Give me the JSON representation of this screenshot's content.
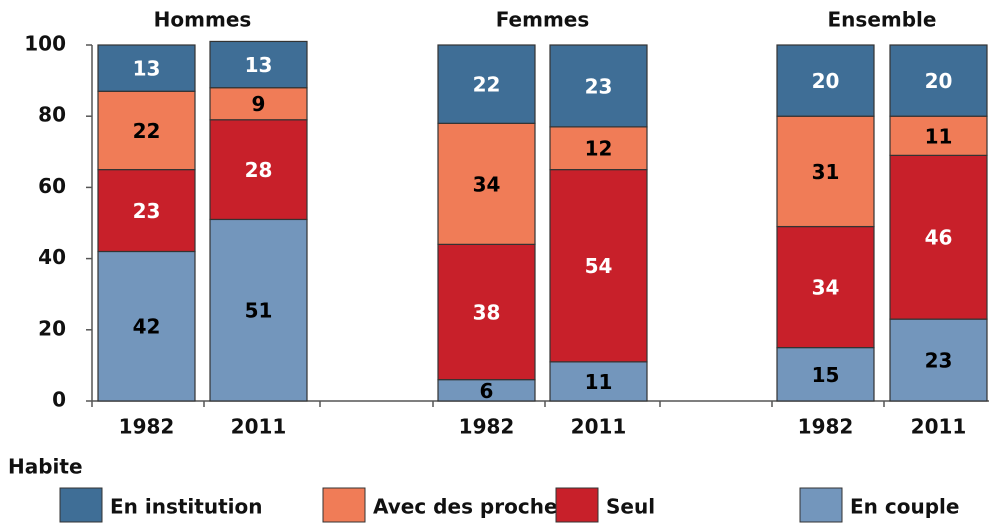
{
  "chart_data": {
    "type": "stacked-bar",
    "groups": [
      "Hommes",
      "Femmes",
      "Ensemble"
    ],
    "categories": [
      "1982",
      "2011",
      "1982",
      "2011",
      "1982",
      "2011"
    ],
    "series": [
      {
        "name": "En couple",
        "color": "#7396bc",
        "label_color": "#000000",
        "values": [
          42,
          51,
          6,
          11,
          15,
          23
        ]
      },
      {
        "name": "Seul",
        "color": "#c8202a",
        "label_color": "#ffffff",
        "values": [
          23,
          28,
          38,
          54,
          34,
          46
        ]
      },
      {
        "name": "Avec des proches",
        "color": "#f07c57",
        "label_color": "#000000",
        "values": [
          22,
          9,
          34,
          12,
          31,
          11
        ]
      },
      {
        "name": "En institution",
        "color": "#3f6e96",
        "label_color": "#ffffff",
        "values": [
          13,
          13,
          22,
          23,
          20,
          20
        ]
      }
    ],
    "legend_title": "Habite",
    "ylim": [
      0,
      100
    ],
    "yticks": [
      0,
      20,
      40,
      60,
      80,
      100
    ],
    "grid": false
  }
}
